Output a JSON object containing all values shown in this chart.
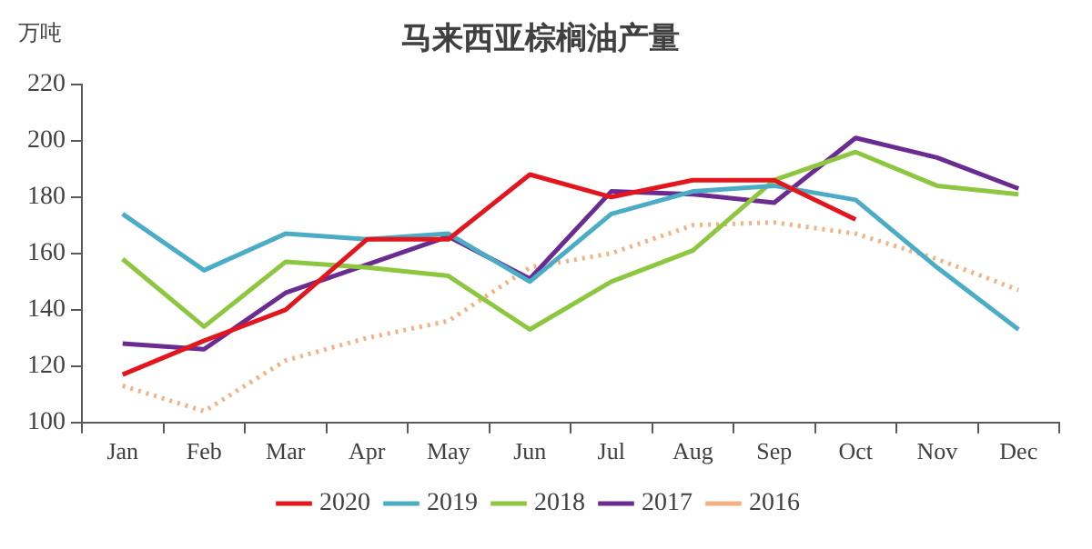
{
  "chart_data": {
    "type": "line",
    "title": "马来西亚棕榈油产量",
    "ylabel": "万吨",
    "categories": [
      "Jan",
      "Feb",
      "Mar",
      "Apr",
      "May",
      "Jun",
      "Jul",
      "Aug",
      "Sep",
      "Oct",
      "Nov",
      "Dec"
    ],
    "series": [
      {
        "name": "2020",
        "color": "#e3161e",
        "values": [
          117,
          129,
          140,
          165,
          165,
          188,
          180,
          186,
          186,
          172,
          null,
          null
        ]
      },
      {
        "name": "2019",
        "color": "#4bacc6",
        "values": [
          174,
          154,
          167,
          165,
          167,
          150,
          174,
          182,
          184,
          179,
          155,
          133
        ]
      },
      {
        "name": "2018",
        "color": "#8dc63f",
        "values": [
          158,
          134,
          157,
          155,
          152,
          133,
          150,
          161,
          186,
          196,
          184,
          181
        ]
      },
      {
        "name": "2017",
        "color": "#6a2c91",
        "values": [
          128,
          126,
          146,
          156,
          166,
          151,
          182,
          181,
          178,
          201,
          194,
          183
        ]
      },
      {
        "name": "2016",
        "color": "#f4b183",
        "line_style": "dotted",
        "values": [
          113,
          104,
          122,
          130,
          136,
          155,
          160,
          170,
          171,
          167,
          158,
          147
        ]
      }
    ],
    "ylim": [
      100,
      220
    ],
    "yticks": [
      100,
      120,
      140,
      160,
      180,
      200,
      220
    ],
    "grid": false,
    "legend": "bottom",
    "marker": "none"
  }
}
